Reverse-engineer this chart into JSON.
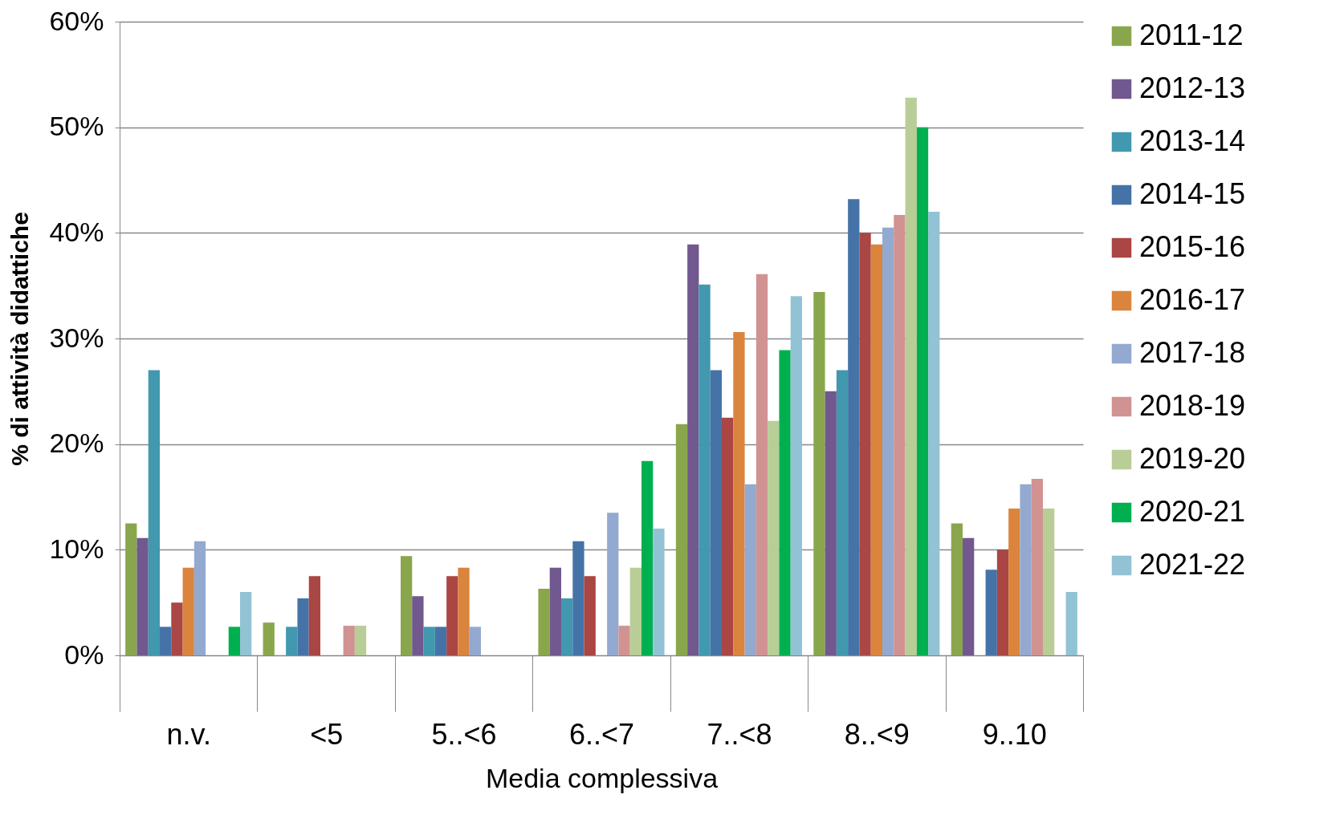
{
  "chart_data": {
    "type": "bar",
    "xlabel": "Media complessiva",
    "ylabel": "% di attività didattiche",
    "categories": [
      "n.v.",
      "<5",
      "5..<6",
      "6..<7",
      "7..<8",
      "8..<9",
      "9..10"
    ],
    "series": [
      {
        "name": "2011-12",
        "color": "#8aa64d",
        "values": [
          12.5,
          3.1,
          9.4,
          6.3,
          21.9,
          34.4,
          12.5
        ]
      },
      {
        "name": "2012-13",
        "color": "#71588f",
        "values": [
          11.1,
          null,
          5.6,
          8.3,
          38.9,
          25.0,
          11.1
        ]
      },
      {
        "name": "2013-14",
        "color": "#4198af",
        "values": [
          27.0,
          2.7,
          2.7,
          5.4,
          35.1,
          27.0,
          null
        ]
      },
      {
        "name": "2014-15",
        "color": "#4573a7",
        "values": [
          2.7,
          5.4,
          2.7,
          10.8,
          27.0,
          43.2,
          8.1
        ]
      },
      {
        "name": "2015-16",
        "color": "#aa4644",
        "values": [
          5.0,
          7.5,
          7.5,
          7.5,
          22.5,
          40.0,
          10.0
        ]
      },
      {
        "name": "2016-17",
        "color": "#db843d",
        "values": [
          8.3,
          null,
          8.3,
          null,
          30.6,
          38.9,
          13.9
        ]
      },
      {
        "name": "2017-18",
        "color": "#93a9d0",
        "values": [
          10.8,
          null,
          2.7,
          13.5,
          16.2,
          40.5,
          16.2
        ]
      },
      {
        "name": "2018-19",
        "color": "#d09392",
        "values": [
          null,
          2.8,
          null,
          2.8,
          36.1,
          41.7,
          16.7
        ]
      },
      {
        "name": "2019-20",
        "color": "#b9cd96",
        "values": [
          null,
          2.8,
          null,
          8.3,
          22.2,
          52.8,
          13.9
        ]
      },
      {
        "name": "2020-21",
        "color": "#00b050",
        "values": [
          2.7,
          null,
          null,
          18.4,
          28.9,
          50.0,
          null
        ]
      },
      {
        "name": "2021-22",
        "color": "#92c3d5",
        "values": [
          6.0,
          null,
          null,
          12.0,
          34.0,
          42.0,
          6.0
        ]
      }
    ],
    "ylim": [
      0,
      60
    ],
    "yticks": [
      {
        "value": 0,
        "label": "0%"
      },
      {
        "value": 10,
        "label": "10%"
      },
      {
        "value": 20,
        "label": "20%"
      },
      {
        "value": 30,
        "label": "30%"
      },
      {
        "value": 40,
        "label": "40%"
      },
      {
        "value": 50,
        "label": "50%"
      },
      {
        "value": 60,
        "label": "60%"
      }
    ],
    "grid": "y",
    "legend": "right"
  }
}
